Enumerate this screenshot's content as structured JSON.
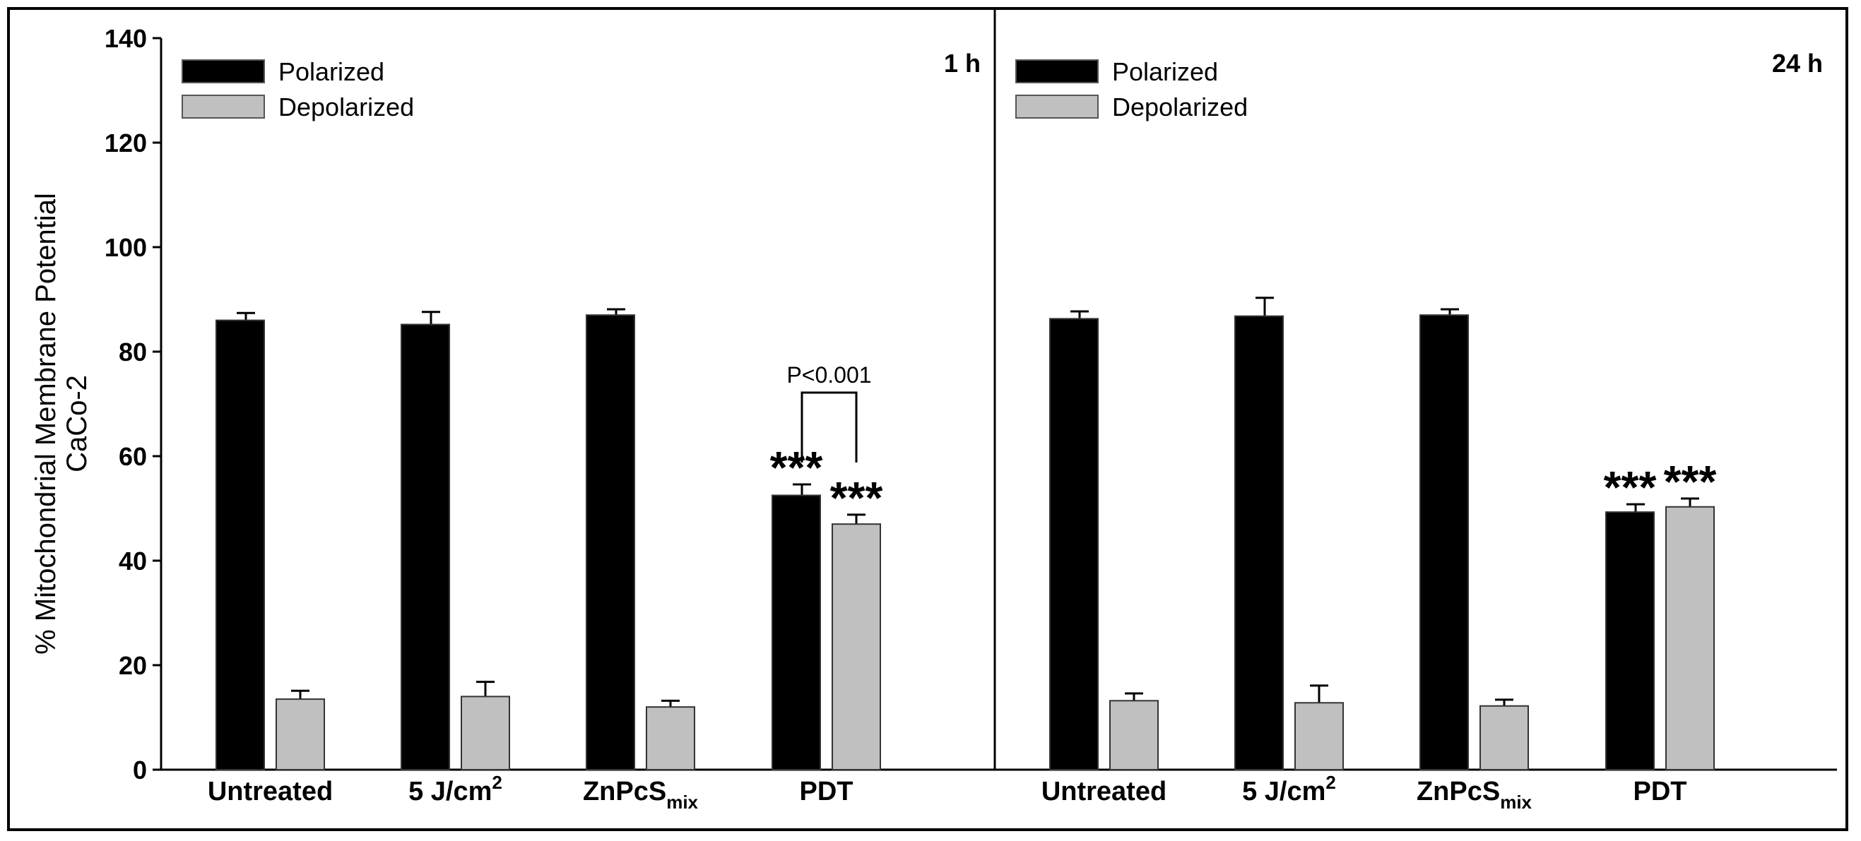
{
  "chart_data": {
    "type": "bar",
    "ylabel": "% Mitochondrial Membrane Potential",
    "ylabel2": "CaCo-2",
    "ylim": [
      0,
      140
    ],
    "yticks": [
      0,
      20,
      40,
      60,
      80,
      100,
      120,
      140
    ],
    "panels": [
      {
        "id": "1h",
        "time_label": "1 h",
        "categories": [
          {
            "main": "Untreated",
            "sup": "",
            "sub": ""
          },
          {
            "main": "5 J/cm",
            "sup": "2",
            "sub": ""
          },
          {
            "main": "ZnPcS",
            "sup": "",
            "sub": "mix"
          },
          {
            "main": "PDT",
            "sup": "",
            "sub": ""
          }
        ],
        "series": [
          {
            "name": "Polarized",
            "color": "#000000",
            "values": [
              86,
              85.2,
              87,
              52.5
            ],
            "errors": [
              1.4,
              2.4,
              1.1,
              2.1
            ],
            "significance": [
              "",
              "",
              "",
              "***"
            ]
          },
          {
            "name": "Depolarized",
            "color": "#c0c0c0",
            "values": [
              13.5,
              14,
              12,
              47
            ],
            "errors": [
              1.6,
              2.8,
              1.2,
              1.8
            ],
            "significance": [
              "",
              "",
              "",
              "***"
            ]
          }
        ],
        "comparison": {
          "label": "P<0.001",
          "category_index": 3
        }
      },
      {
        "id": "24h",
        "time_label": "24 h",
        "categories": [
          {
            "main": "Untreated",
            "sup": "",
            "sub": ""
          },
          {
            "main": "5 J/cm",
            "sup": "2",
            "sub": ""
          },
          {
            "main": "ZnPcS",
            "sup": "",
            "sub": "mix"
          },
          {
            "main": "PDT",
            "sup": "",
            "sub": ""
          }
        ],
        "series": [
          {
            "name": "Polarized",
            "color": "#000000",
            "values": [
              86.3,
              86.8,
              87,
              49.3
            ],
            "errors": [
              1.4,
              3.5,
              1.1,
              1.5
            ],
            "significance": [
              "",
              "",
              "",
              "***"
            ]
          },
          {
            "name": "Depolarized",
            "color": "#c0c0c0",
            "values": [
              13.2,
              12.8,
              12.2,
              50.3
            ],
            "errors": [
              1.4,
              3.3,
              1.2,
              1.6
            ],
            "significance": [
              "",
              "",
              "",
              "***"
            ]
          }
        ],
        "comparison": null
      }
    ]
  }
}
